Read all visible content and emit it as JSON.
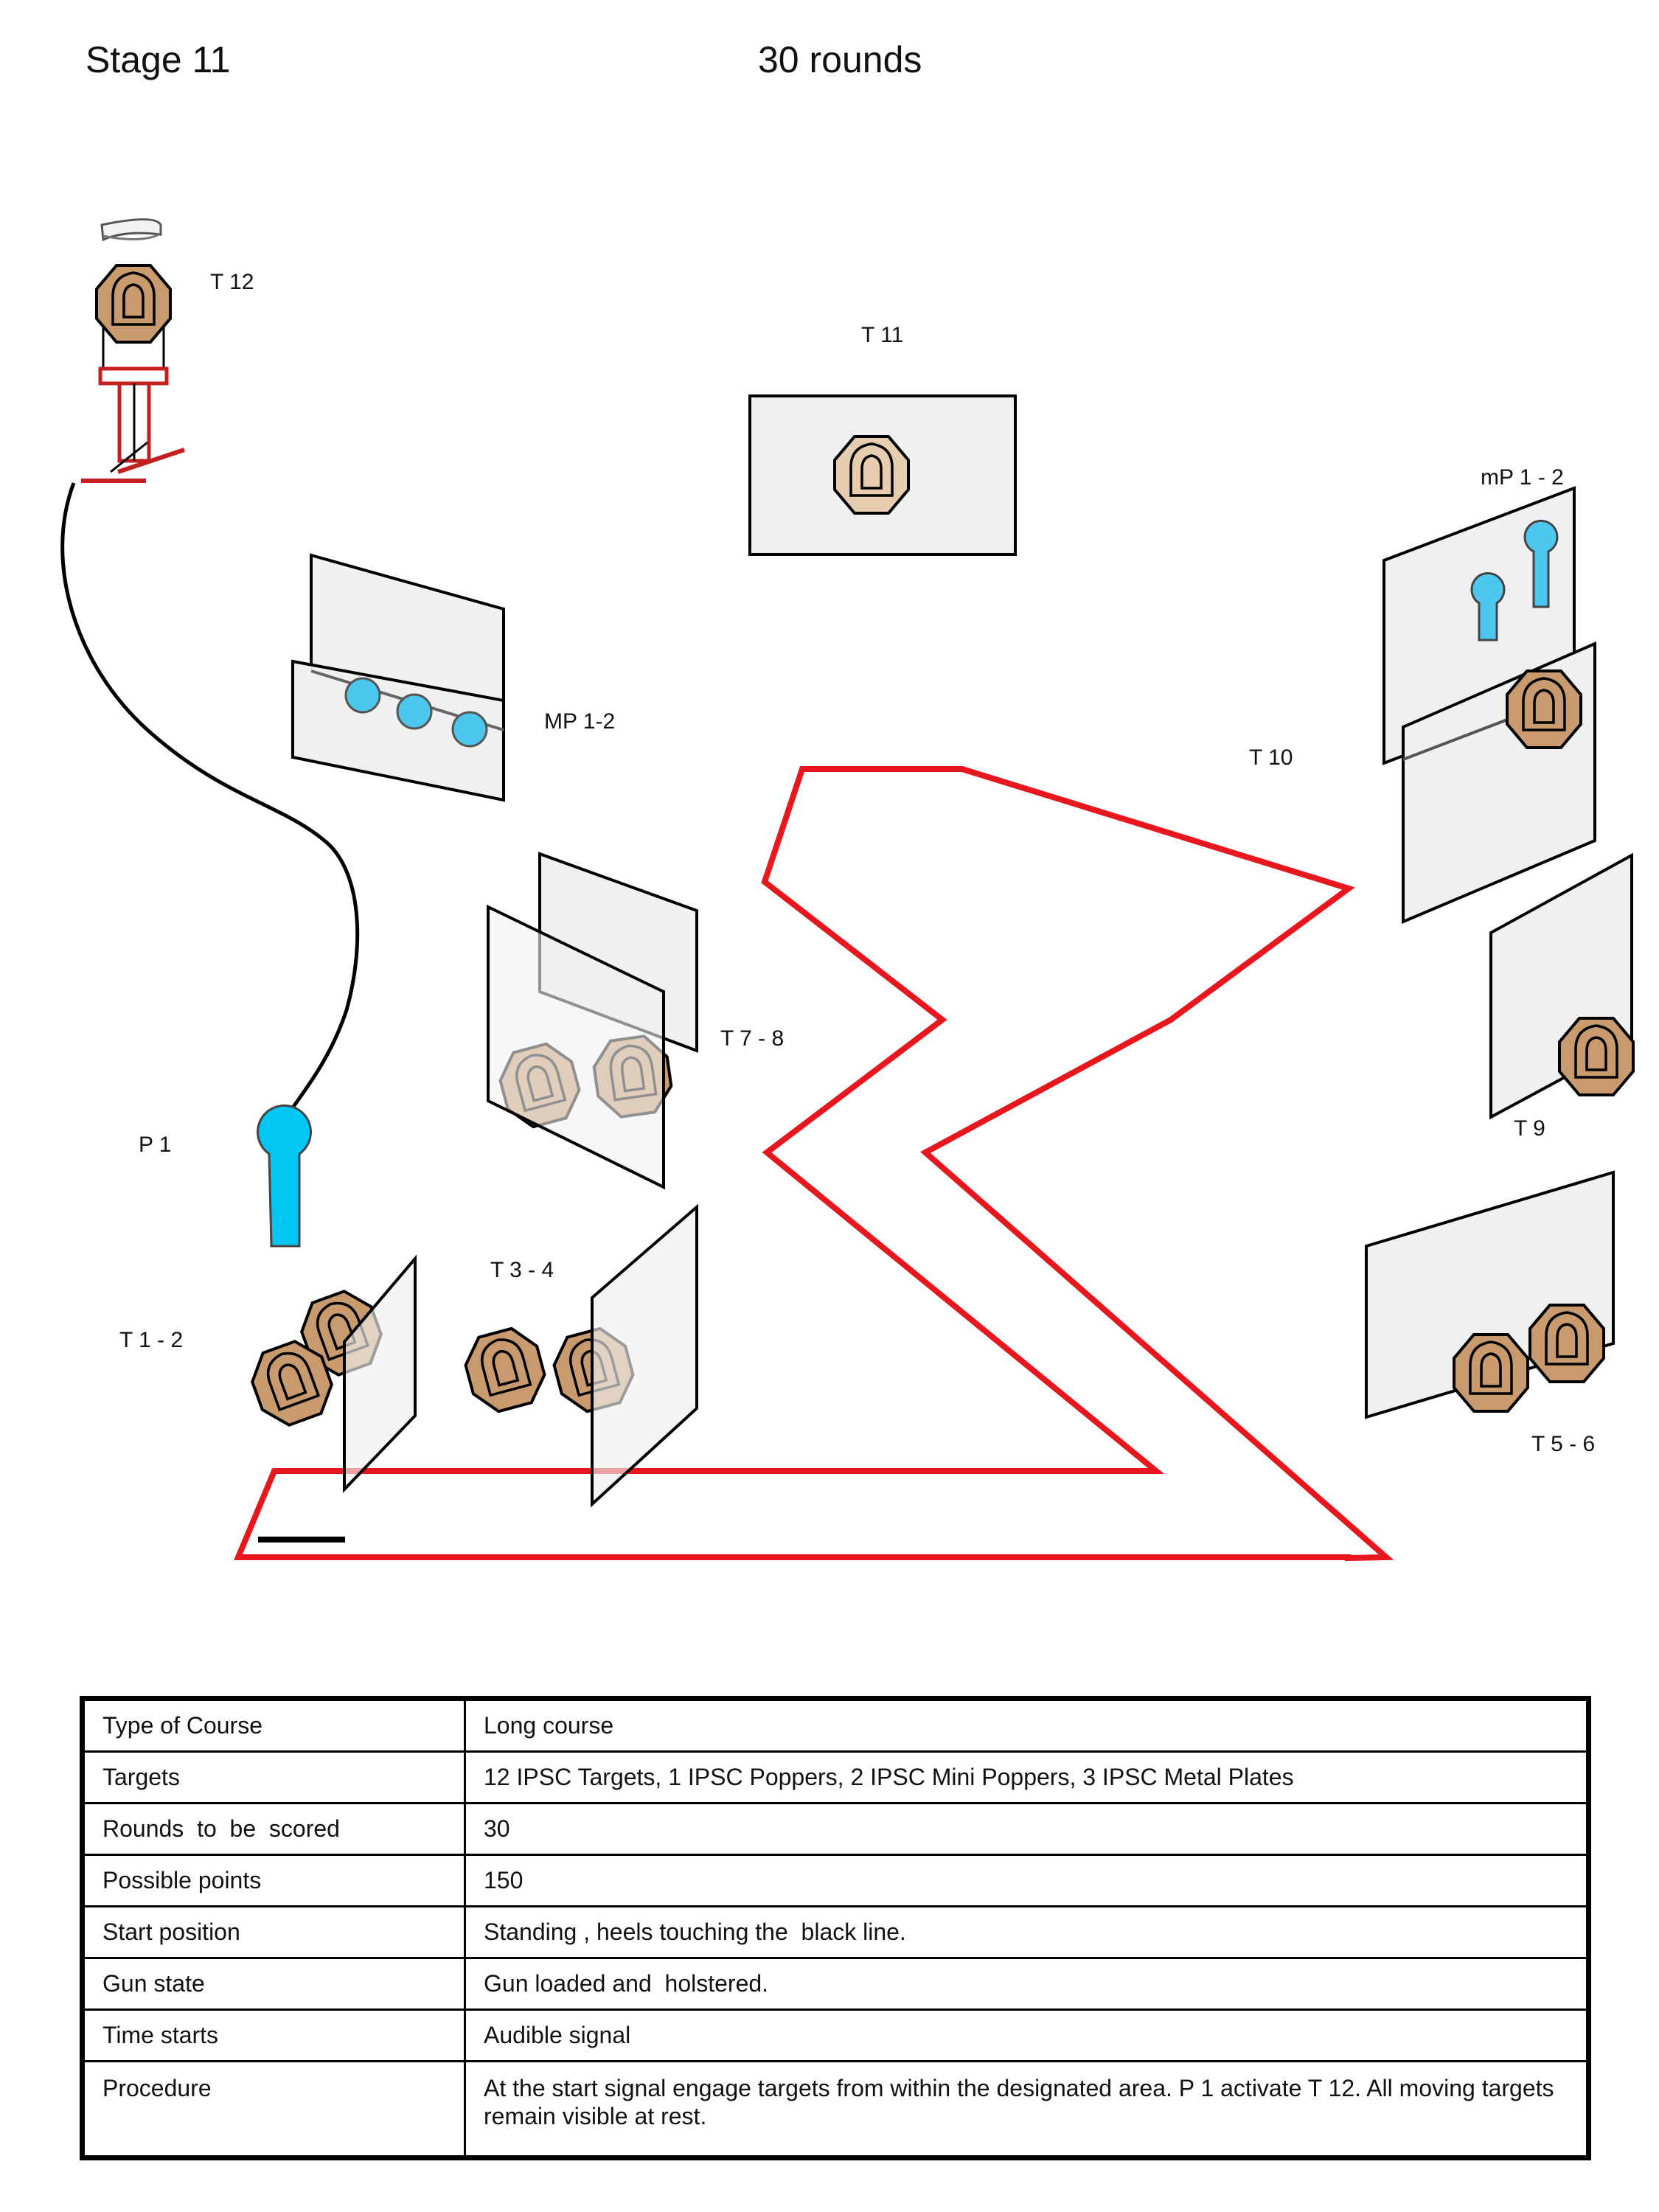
{
  "header": {
    "stage": "Stage  11",
    "rounds": "30 rounds"
  },
  "labels": {
    "t12": "T  12",
    "t11": "T  11",
    "mp_right": "mP 1 - 2",
    "mp_left": "MP 1-2",
    "t10": "T  10",
    "t78": "T  7 - 8",
    "p1": "P 1",
    "t9": "T  9",
    "t34": "T 3 - 4",
    "t12b": "T 1 - 2",
    "t56": "T  5 - 6"
  },
  "colors": {
    "fault_line": "#e8161d",
    "target_fill": "#c99a6e",
    "target_faded": "#e6cdb0",
    "popper_fill": "#4cc8ee",
    "barrier_fill": "#f0f0f0"
  },
  "table": {
    "rows": [
      {
        "key": "Type of Course",
        "value": "Long course"
      },
      {
        "key": "Targets",
        "value": "12 IPSC Targets, 1 IPSC Poppers, 2 IPSC Mini Poppers, 3 IPSC Metal Plates"
      },
      {
        "key": "Rounds  to  be  scored",
        "value": "30"
      },
      {
        "key": "Possible points",
        "value": "150"
      },
      {
        "key": "Start position",
        "value": "Standing , heels touching the  black line."
      },
      {
        "key": "Gun state",
        "value": "Gun loaded and  holstered."
      },
      {
        "key": "Time starts",
        "value": "Audible signal"
      },
      {
        "key": "Procedure",
        "value": "At the start signal engage targets from within the designated area. P 1 activate T 12. All moving targets remain visible at rest."
      }
    ]
  }
}
